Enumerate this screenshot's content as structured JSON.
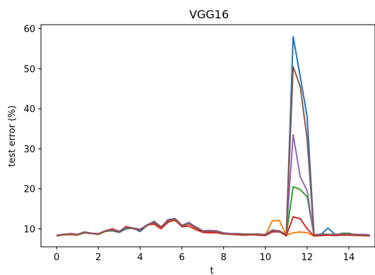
{
  "chart_data": {
    "type": "line",
    "title": "VGG16",
    "xlabel": "t",
    "ylabel": "test error (%)",
    "xlim": [
      -0.75,
      15.25
    ],
    "ylim": [
      5.5,
      61
    ],
    "xticks": [
      "0",
      "2",
      "4",
      "6",
      "8",
      "10",
      "12",
      "14"
    ],
    "yticks": [
      "10",
      "20",
      "30",
      "40",
      "50",
      "60"
    ],
    "grid": false,
    "x": [
      0,
      0.33,
      0.67,
      1,
      1.33,
      1.67,
      2,
      2.33,
      2.67,
      3,
      3.33,
      3.67,
      4,
      4.33,
      4.67,
      5,
      5.33,
      5.67,
      6,
      6.33,
      6.67,
      7,
      7.33,
      7.67,
      8,
      8.33,
      8.67,
      9,
      9.33,
      9.67,
      10,
      10.33,
      10.67,
      11,
      11.33,
      11.67,
      12,
      12.33,
      12.67,
      13,
      13.33,
      13.67,
      14,
      14.33,
      14.67,
      15
    ],
    "series": [
      {
        "color": "#1f77b4",
        "values": [
          8.3,
          8.5,
          8.6,
          8.5,
          9.0,
          8.8,
          8.7,
          9.4,
          9.5,
          9.1,
          10.0,
          10.2,
          9.3,
          10.8,
          11.7,
          10.3,
          12.3,
          12.5,
          10.8,
          11.6,
          10.4,
          9.5,
          9.5,
          9.4,
          8.9,
          8.7,
          8.8,
          8.6,
          8.6,
          8.7,
          8.5,
          9.7,
          9.4,
          8.5,
          58,
          48,
          38,
          8.5,
          8.6,
          10.2,
          8.6,
          8.6,
          8.5,
          8.5,
          8.4,
          8.3
        ]
      },
      {
        "color": "#ff7f0e",
        "values": [
          8.2,
          8.5,
          8.5,
          8.4,
          9.0,
          8.8,
          8.6,
          9.3,
          10.0,
          9.4,
          10.3,
          10.0,
          9.8,
          11.0,
          11.5,
          10.3,
          12.2,
          12.0,
          10.7,
          11.2,
          10.2,
          9.2,
          9.3,
          9.3,
          8.8,
          8.7,
          8.6,
          8.5,
          8.6,
          8.5,
          8.4,
          12.0,
          12.1,
          8.4,
          9.0,
          9.2,
          9.0,
          8.2,
          8.3,
          8.4,
          8.3,
          8.5,
          8.4,
          8.3,
          8.3,
          8.2
        ]
      },
      {
        "color": "#2ca02c",
        "values": [
          8.3,
          8.5,
          8.7,
          8.5,
          9.0,
          8.9,
          8.6,
          9.4,
          9.6,
          9.3,
          10.2,
          10.1,
          9.7,
          10.9,
          11.9,
          10.5,
          12.0,
          12.5,
          10.6,
          11.5,
          10.3,
          9.3,
          9.4,
          9.3,
          8.9,
          8.7,
          8.6,
          8.5,
          8.7,
          8.6,
          8.4,
          9.3,
          9.2,
          8.4,
          20.5,
          19.8,
          18.0,
          8.3,
          8.5,
          8.5,
          8.4,
          8.9,
          8.9,
          8.5,
          8.5,
          8.3
        ]
      },
      {
        "color": "#d62728",
        "values": [
          8.2,
          8.6,
          8.8,
          8.6,
          9.2,
          8.9,
          8.6,
          9.5,
          10.0,
          9.3,
          10.6,
          10.1,
          9.6,
          10.9,
          11.2,
          10.0,
          11.6,
          12.3,
          10.5,
          10.7,
          9.8,
          9.1,
          9.0,
          9.0,
          8.7,
          8.6,
          8.5,
          8.4,
          8.5,
          8.4,
          8.3,
          9.2,
          9.3,
          8.2,
          13.0,
          12.5,
          10.0,
          8.2,
          8.3,
          8.4,
          8.3,
          8.4,
          8.4,
          8.4,
          8.3,
          8.2
        ]
      },
      {
        "color": "#9467bd",
        "values": [
          8.4,
          8.6,
          8.7,
          8.6,
          9.2,
          8.9,
          8.8,
          9.5,
          9.8,
          9.4,
          10.4,
          10.2,
          9.9,
          11.0,
          11.8,
          10.5,
          12.1,
          12.6,
          10.9,
          11.4,
          10.5,
          9.5,
          9.6,
          9.5,
          9.0,
          8.8,
          8.8,
          8.7,
          8.7,
          8.6,
          8.6,
          9.6,
          9.5,
          8.6,
          33.5,
          23.0,
          19.5,
          8.5,
          8.7,
          8.6,
          8.6,
          8.7,
          8.7,
          8.6,
          8.6,
          8.5
        ]
      },
      {
        "color": "#8c564b",
        "values": [
          8.3,
          8.6,
          8.6,
          8.5,
          9.1,
          8.8,
          8.7,
          9.4,
          9.7,
          9.2,
          10.3,
          10.1,
          9.6,
          10.8,
          11.6,
          10.4,
          12.0,
          12.4,
          10.7,
          11.3,
          10.3,
          9.4,
          9.4,
          9.3,
          8.8,
          8.7,
          8.7,
          8.6,
          8.6,
          8.6,
          8.5,
          9.5,
          9.4,
          8.5,
          50.5,
          45.5,
          32.5,
          8.4,
          8.5,
          8.6,
          8.5,
          8.6,
          8.6,
          8.5,
          8.4,
          8.3
        ]
      }
    ]
  }
}
